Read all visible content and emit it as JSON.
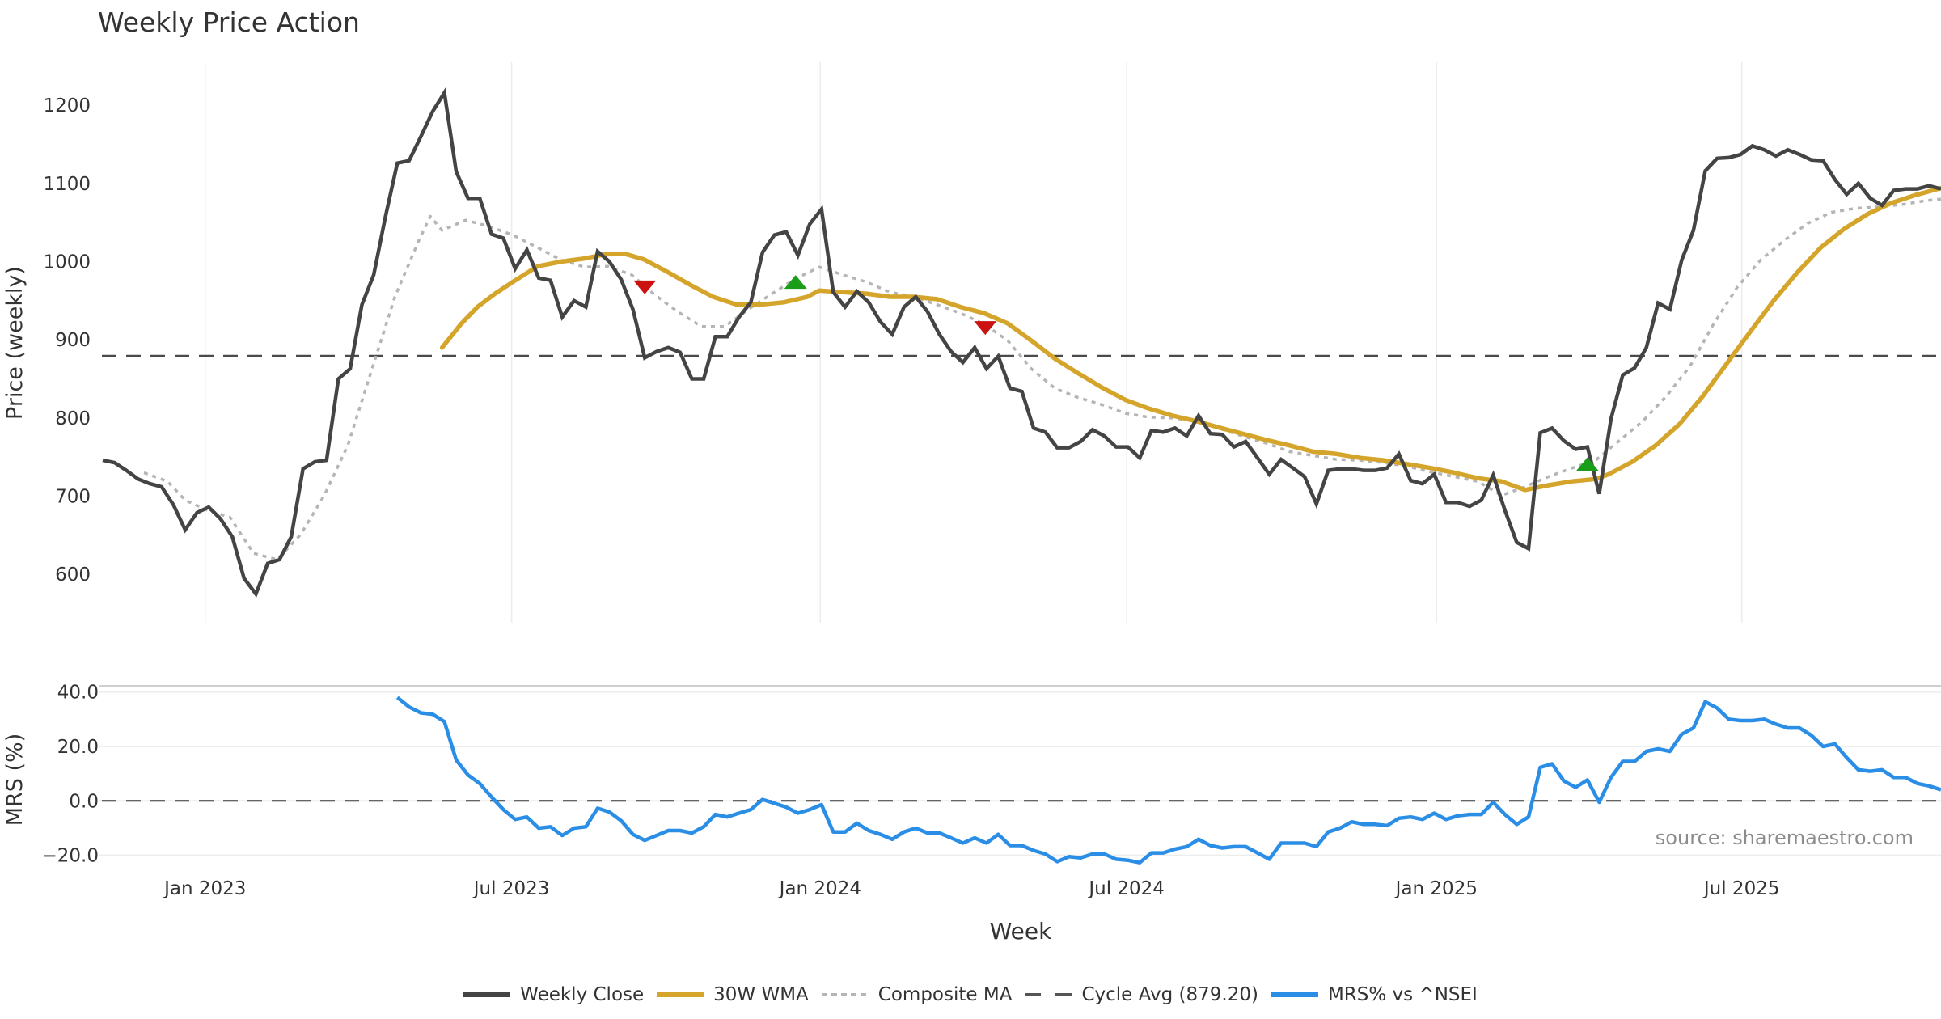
{
  "chart_data": [
    {
      "type": "line",
      "panel": "price",
      "title": "Weekly Price Action",
      "xlabel": "Week",
      "ylabel": "Price (weekly)",
      "ylim": [
        530,
        1240
      ],
      "yticks": [
        600,
        700,
        800,
        900,
        1000,
        1100,
        1200
      ],
      "x_start": "2022-11-01",
      "x_step_days": 7,
      "grid": true,
      "series": [
        {
          "name": "Weekly Close",
          "color": "#444444",
          "style": "solid",
          "start_week": 0,
          "values": [
            746,
            743,
            733,
            722,
            716,
            712,
            689,
            657,
            679,
            686,
            671,
            648,
            595,
            575,
            614,
            619,
            648,
            735,
            744,
            746,
            850,
            863,
            945,
            983,
            1058,
            1126,
            1129,
            1160,
            1192,
            1216,
            1115,
            1081,
            1081,
            1035,
            1030,
            991,
            1015,
            979,
            976,
            929,
            950,
            942,
            1013,
            1000,
            977,
            939,
            877,
            885,
            890,
            884,
            850,
            850,
            904,
            904,
            929,
            948,
            1012,
            1034,
            1038,
            1008,
            1048,
            1067,
            961,
            942,
            962,
            948,
            923,
            907,
            942,
            955,
            936,
            907,
            885,
            871,
            890,
            863,
            879,
            838,
            834,
            787,
            782,
            762,
            762,
            770,
            785,
            777,
            763,
            763,
            749,
            784,
            782,
            787,
            777,
            803,
            780,
            779,
            763,
            770,
            749,
            728,
            747,
            736,
            725,
            690,
            733,
            735,
            735,
            733,
            733,
            736,
            754,
            720,
            716,
            728,
            692,
            692,
            687,
            695,
            727,
            682,
            641,
            633,
            781,
            787,
            771,
            760,
            763,
            703,
            799,
            855,
            864,
            890,
            947,
            939,
            1002,
            1040,
            1116,
            1132,
            1133,
            1137,
            1148,
            1143,
            1135,
            1143,
            1137,
            1130,
            1129,
            1105,
            1086,
            1100,
            1081,
            1072,
            1091,
            1093,
            1093,
            1097,
            1093
          ]
        },
        {
          "name": "30W WMA",
          "color": "#d4a52a",
          "style": "solid",
          "weeks": [
            28.8,
            30.4,
            31.8,
            33.3,
            34.9,
            36.9,
            38.9,
            40.9,
            42.9,
            44.3,
            45.9,
            47.9,
            49.9,
            51.8,
            53.8,
            55.8,
            57.8,
            59.8,
            60.8,
            62.8,
            64.8,
            66.8,
            68.8,
            70.8,
            72.8,
            74.8,
            76.8,
            78.8,
            80.8,
            82.8,
            84.8,
            86.8,
            88.8,
            90.8,
            92.8,
            94.7,
            96.7,
            98.7,
            100.7,
            102.7,
            104.7,
            106.7,
            108.7,
            110.7,
            112.7,
            114.7,
            116.7,
            118.7,
            120.7,
            122.7,
            124.7,
            126.7,
            127.8,
            129.8,
            131.8,
            133.8,
            135.8,
            137.8,
            139.8,
            141.8,
            143.8,
            145.8,
            147.8,
            149.8,
            151.8,
            153.8,
            156
          ],
          "values": [
            890,
            920,
            942,
            959,
            975,
            994,
            1000,
            1004,
            1010,
            1010,
            1003,
            987,
            970,
            955,
            945,
            945,
            948,
            955,
            963,
            961,
            959,
            955,
            955,
            952,
            942,
            934,
            921,
            899,
            876,
            857,
            839,
            823,
            812,
            803,
            796,
            788,
            780,
            772,
            765,
            757,
            754,
            749,
            746,
            741,
            736,
            730,
            723,
            719,
            708,
            714,
            719,
            722,
            728,
            744,
            765,
            792,
            828,
            869,
            910,
            950,
            986,
            1018,
            1042,
            1061,
            1075,
            1085,
            1094
          ]
        },
        {
          "name": "Composite MA",
          "color": "#b5b5b5",
          "style": "dotted",
          "weeks": [
            3.5,
            5.5,
            7.0,
            8.9,
            10.8,
            12.8,
            14.8,
            16.8,
            18.8,
            20.8,
            22.8,
            24.8,
            26.8,
            27.8,
            28.8,
            30.8,
            32.8,
            34.8,
            36.9,
            38.9,
            40.9,
            42.9,
            44.9,
            46.8,
            48.8,
            50.8,
            52.8,
            54.8,
            56.8,
            58.8,
            60.8,
            62.8,
            64.8,
            66.8,
            68.8,
            70.8,
            72.8,
            74.8,
            76.8,
            78.8,
            80.8,
            82.8,
            84.8,
            86.8,
            88.8,
            90.8,
            92.8,
            94.7,
            96.7,
            98.7,
            100.7,
            102.7,
            104.7,
            106.7,
            108.7,
            110.7,
            112.7,
            114.7,
            116.7,
            118.7,
            120.7,
            122.7,
            124.7,
            126.7,
            128.7,
            130.7,
            132.7,
            134.7,
            136.7,
            138.7,
            140.7,
            142.7,
            144.7,
            146.7,
            148.7,
            150.7,
            152.7,
            154.7,
            156
          ],
          "values": [
            730,
            719,
            695,
            682,
            673,
            627,
            619,
            651,
            701,
            765,
            860,
            955,
            1026,
            1058,
            1040,
            1053,
            1045,
            1034,
            1018,
            1002,
            993,
            994,
            983,
            958,
            936,
            917,
            917,
            939,
            959,
            978,
            993,
            983,
            974,
            961,
            955,
            945,
            934,
            920,
            899,
            863,
            838,
            826,
            817,
            806,
            801,
            800,
            796,
            787,
            777,
            768,
            757,
            752,
            747,
            746,
            743,
            738,
            731,
            725,
            719,
            701,
            712,
            725,
            736,
            746,
            771,
            796,
            828,
            866,
            920,
            967,
            1002,
            1027,
            1049,
            1063,
            1068,
            1070,
            1073,
            1078,
            1080
          ]
        },
        {
          "name": "Cycle Avg (879.20)",
          "color": "#4a4a4a",
          "style": "dashed",
          "value": 879.2
        }
      ],
      "signals": [
        {
          "type": "sell",
          "week": 46.0,
          "value": 967,
          "color": "#cc1111"
        },
        {
          "type": "buy",
          "week": 58.8,
          "value": 974,
          "color": "#1a9e1a"
        },
        {
          "type": "sell",
          "week": 74.9,
          "value": 915,
          "color": "#cc1111"
        },
        {
          "type": "buy",
          "week": 126.0,
          "value": 741,
          "color": "#1a9e1a"
        }
      ]
    },
    {
      "type": "line",
      "panel": "mrs",
      "ylabel": "MRS (%)",
      "ylim": [
        -25,
        42
      ],
      "yticks": [
        -20.0,
        0.0,
        20.0,
        40.0
      ],
      "ytick_labels": [
        "−20.0",
        "0.0",
        "20.0",
        "40.0"
      ],
      "zero_line": 0,
      "series": [
        {
          "name": "MRS% vs ^NSEI",
          "color": "#2b8ee6",
          "start_week": 25,
          "values": [
            38,
            34.5,
            32.3,
            31.8,
            29.1,
            15,
            9.5,
            6.4,
            1.4,
            -3.2,
            -6.8,
            -5.9,
            -10,
            -9.5,
            -12.7,
            -10,
            -9.5,
            -2.7,
            -4.1,
            -7.3,
            -12.3,
            -14.5,
            -12.7,
            -10.9,
            -10.9,
            -11.8,
            -9.5,
            -5,
            -5.9,
            -4.5,
            -3.2,
            0.5,
            -0.9,
            -2.3,
            -4.5,
            -3.2,
            -1.4,
            -11.4,
            -11.4,
            -8.2,
            -10.9,
            -12.3,
            -14.1,
            -11.4,
            -10,
            -11.8,
            -11.8,
            -13.6,
            -15.5,
            -13.6,
            -15.5,
            -12.3,
            -16.4,
            -16.4,
            -18.2,
            -19.5,
            -22.3,
            -20.5,
            -20.9,
            -19.5,
            -19.5,
            -21.4,
            -21.8,
            -22.7,
            -19.1,
            -19.1,
            -17.7,
            -16.8,
            -14.1,
            -16.4,
            -17.3,
            -16.8,
            -16.8,
            -19.1,
            -21.4,
            -15.5,
            -15.5,
            -15.5,
            -16.8,
            -11.4,
            -10,
            -7.7,
            -8.6,
            -8.6,
            -9.1,
            -6.4,
            -5.9,
            -6.8,
            -4.5,
            -6.8,
            -5.5,
            -5,
            -5,
            -0.5,
            -5,
            -8.6,
            -5.9,
            12.3,
            13.6,
            7.3,
            5,
            7.7,
            -0.5,
            8.6,
            14.5,
            14.5,
            18.2,
            19.1,
            18.2,
            24.5,
            26.8,
            36.4,
            34.1,
            30,
            29.5,
            29.5,
            30,
            28.2,
            26.8,
            26.8,
            24.1,
            20,
            20.9,
            15.9,
            11.4,
            10.9,
            11.4,
            8.6,
            8.6,
            6.4,
            5.5,
            4.1
          ]
        }
      ],
      "annotation": "source: sharemaestro.com"
    }
  ],
  "x_axis": {
    "label": "Week",
    "ticks": [
      {
        "label": "Jan 2023",
        "week": 8.7
      },
      {
        "label": "Jul 2023",
        "week": 34.7
      },
      {
        "label": "Jan 2024",
        "week": 60.9
      },
      {
        "label": "Jul 2024",
        "week": 86.9
      },
      {
        "label": "Jan 2025",
        "week": 113.2
      },
      {
        "label": "Jul 2025",
        "week": 139.1
      }
    ]
  },
  "legend": {
    "position": "bottom",
    "items": [
      {
        "label": "Weekly Close",
        "swatch": "sw-close"
      },
      {
        "label": "30W WMA",
        "swatch": "sw-wma"
      },
      {
        "label": "Composite MA",
        "swatch": "sw-comp"
      },
      {
        "label": "Cycle Avg (879.20)",
        "swatch": "sw-cycle"
      },
      {
        "label": "MRS% vs ^NSEI",
        "swatch": "sw-mrs"
      }
    ]
  }
}
